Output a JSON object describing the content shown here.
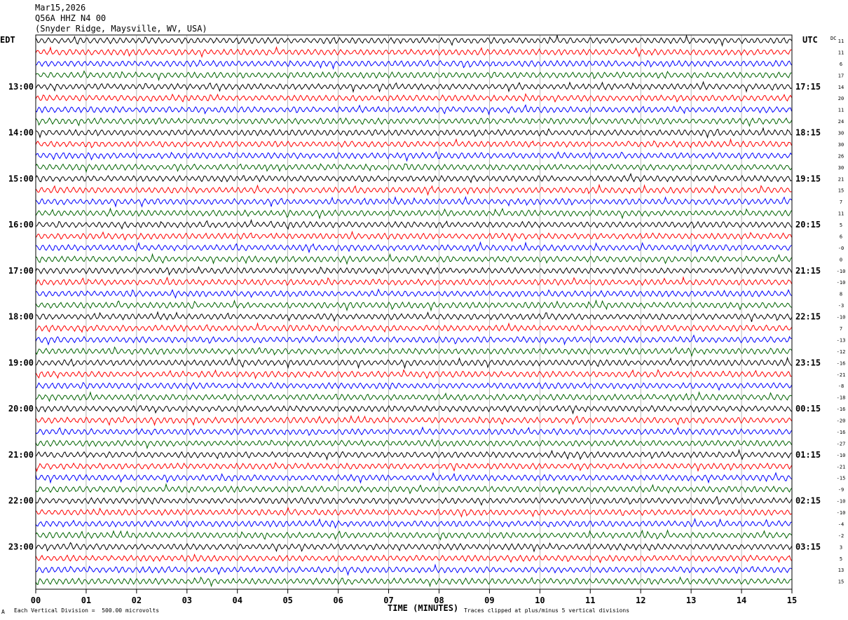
{
  "header": {
    "date": "Mar15,2026",
    "station": "Q56A HHZ N4 00",
    "location": "(Snyder Ridge, Maysville, WV, USA)"
  },
  "left_tz": "EDT",
  "right_tz": "UTC",
  "dc_label": "DC",
  "footer": {
    "scale_note": "Each Vertical Division =  500.00 microvolts",
    "xlabel": "TIME (MINUTES)",
    "clip_note": "Traces clipped at plus/minus 5 vertical divisions",
    "corner_mark": "A"
  },
  "colors": {
    "trace_cycle": [
      "#000000",
      "#ff0000",
      "#0000ff",
      "#006400"
    ],
    "grid": "#888888"
  },
  "chart_data": {
    "type": "line",
    "title": "",
    "xlabel": "TIME (MINUTES)",
    "x_ticks": [
      "00",
      "01",
      "02",
      "03",
      "04",
      "05",
      "06",
      "07",
      "08",
      "09",
      "10",
      "11",
      "12",
      "13",
      "14",
      "15"
    ],
    "xlim": [
      0,
      15
    ],
    "rows": 48,
    "left_hour_labels": [
      "13:00",
      "14:00",
      "15:00",
      "16:00",
      "17:00",
      "18:00",
      "19:00",
      "20:00",
      "21:00",
      "22:00",
      "23:00"
    ],
    "right_hour_labels": [
      "17:15",
      "18:15",
      "19:15",
      "20:15",
      "21:15",
      "22:15",
      "23:15",
      "00:15",
      "01:15",
      "02:15",
      "03:15"
    ],
    "hour_label_first_row": 4,
    "hour_label_every": 4,
    "dc_offsets": [
      "11",
      "11",
      "6",
      "17",
      "14",
      "20",
      "11",
      "24",
      "30",
      "30",
      "26",
      "30",
      "21",
      "15",
      "7",
      "11",
      "5",
      "6",
      "-0",
      "0",
      "-10",
      "-10",
      "8",
      "-3",
      "-10",
      "7",
      "-13",
      "-12",
      "-16",
      "-21",
      "-8",
      "-18",
      "-16",
      "-20",
      "-16",
      "-27",
      "-10",
      "-21",
      "-15",
      "-9",
      "-10",
      "-10",
      "-4",
      "-2",
      "3",
      "5",
      "13",
      "15"
    ]
  }
}
